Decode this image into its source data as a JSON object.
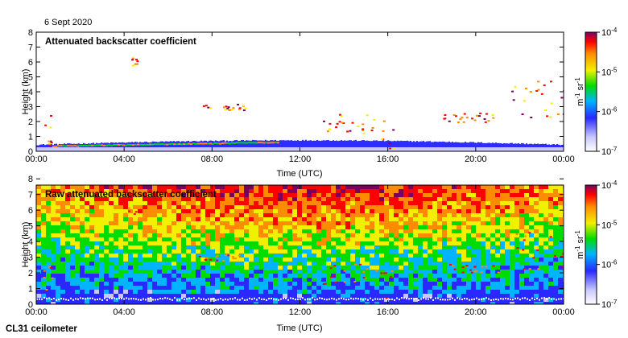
{
  "date_label": "6 Sept 2020",
  "instrument_label": "CL31 ceilometer",
  "chart_data": [
    {
      "type": "heatmap",
      "title": "Attenuated backscatter coefficient",
      "xlabel": "Time (UTC)",
      "ylabel": "Height (km)",
      "xticks": [
        "00:00",
        "04:00",
        "08:00",
        "12:00",
        "16:00",
        "20:00",
        "00:00"
      ],
      "yticks": [
        "0",
        "1",
        "2",
        "3",
        "4",
        "5",
        "6",
        "7",
        "8"
      ],
      "xlim_hours": [
        0,
        24
      ],
      "ylim_km": [
        0,
        8
      ],
      "colorbar": {
        "scale": "log",
        "ticks": [
          "10-7",
          "10-6",
          "10-5",
          "10-4"
        ],
        "range": [
          1e-07,
          0.0001
        ],
        "unit_label": "m-1 sr-1"
      },
      "features": [
        {
          "kind": "boundary_layer",
          "hours": [
            0,
            24
          ],
          "top_km": [
            0.2,
            0.7
          ]
        },
        {
          "kind": "cloud",
          "hours": [
            0.3,
            0.7
          ],
          "height_km": [
            0.2,
            2.5
          ]
        },
        {
          "kind": "cloud",
          "hours": [
            4.0,
            4.6
          ],
          "height_km": [
            5.8,
            6.3
          ]
        },
        {
          "kind": "cloud",
          "hours": [
            7.3,
            9.5
          ],
          "height_km": [
            2.8,
            3.2
          ]
        },
        {
          "kind": "cloud",
          "hours": [
            13.0,
            15.5
          ],
          "height_km": [
            1.2,
            2.6
          ]
        },
        {
          "kind": "cloud",
          "hours": [
            15.6,
            16.3
          ],
          "height_km": [
            0.0,
            2.2
          ]
        },
        {
          "kind": "cloud",
          "hours": [
            18.5,
            21.0
          ],
          "height_km": [
            2.0,
            2.6
          ]
        },
        {
          "kind": "cloud",
          "hours": [
            21.6,
            24.0
          ],
          "height_km": [
            2.3,
            4.8
          ]
        }
      ]
    },
    {
      "type": "heatmap",
      "title": "Raw attenuated backscatter coefficient",
      "xlabel": "Time (UTC)",
      "ylabel": "Height (km)",
      "xticks": [
        "00:00",
        "04:00",
        "08:00",
        "12:00",
        "16:00",
        "20:00",
        "00:00"
      ],
      "yticks": [
        "0",
        "1",
        "2",
        "3",
        "4",
        "5",
        "6",
        "7",
        "8"
      ],
      "xlim_hours": [
        0,
        24
      ],
      "ylim_km": [
        0,
        7.6
      ],
      "colorbar": {
        "scale": "log",
        "ticks": [
          "10-7",
          "10-6",
          "10-5",
          "10-4"
        ],
        "range": [
          1e-07,
          0.0001
        ],
        "unit_label": "m-1 sr-1"
      }
    }
  ]
}
